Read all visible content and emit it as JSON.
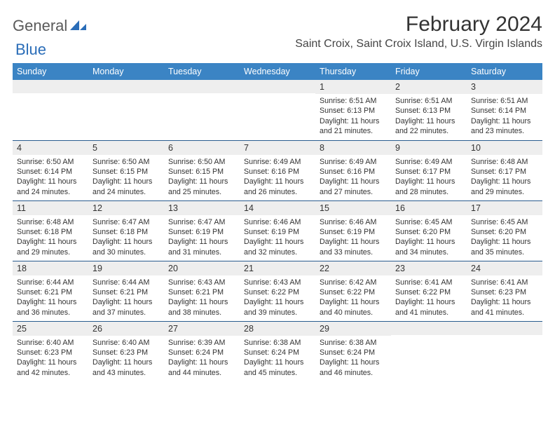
{
  "logo": {
    "general": "General",
    "blue": "Blue"
  },
  "title": "February 2024",
  "location": "Saint Croix, Saint Croix Island, U.S. Virgin Islands",
  "colors": {
    "header_bg": "#3b84c4",
    "header_text": "#ffffff",
    "row_divider": "#2a5c8f",
    "daynum_bg": "#eeeeee",
    "text": "#333333",
    "logo_gray": "#5a5a5a",
    "logo_blue": "#2a6db8"
  },
  "day_headers": [
    "Sunday",
    "Monday",
    "Tuesday",
    "Wednesday",
    "Thursday",
    "Friday",
    "Saturday"
  ],
  "weeks": [
    [
      {
        "num": "",
        "lines": []
      },
      {
        "num": "",
        "lines": []
      },
      {
        "num": "",
        "lines": []
      },
      {
        "num": "",
        "lines": []
      },
      {
        "num": "1",
        "lines": [
          "Sunrise: 6:51 AM",
          "Sunset: 6:13 PM",
          "Daylight: 11 hours",
          "and 21 minutes."
        ]
      },
      {
        "num": "2",
        "lines": [
          "Sunrise: 6:51 AM",
          "Sunset: 6:13 PM",
          "Daylight: 11 hours",
          "and 22 minutes."
        ]
      },
      {
        "num": "3",
        "lines": [
          "Sunrise: 6:51 AM",
          "Sunset: 6:14 PM",
          "Daylight: 11 hours",
          "and 23 minutes."
        ]
      }
    ],
    [
      {
        "num": "4",
        "lines": [
          "Sunrise: 6:50 AM",
          "Sunset: 6:14 PM",
          "Daylight: 11 hours",
          "and 24 minutes."
        ]
      },
      {
        "num": "5",
        "lines": [
          "Sunrise: 6:50 AM",
          "Sunset: 6:15 PM",
          "Daylight: 11 hours",
          "and 24 minutes."
        ]
      },
      {
        "num": "6",
        "lines": [
          "Sunrise: 6:50 AM",
          "Sunset: 6:15 PM",
          "Daylight: 11 hours",
          "and 25 minutes."
        ]
      },
      {
        "num": "7",
        "lines": [
          "Sunrise: 6:49 AM",
          "Sunset: 6:16 PM",
          "Daylight: 11 hours",
          "and 26 minutes."
        ]
      },
      {
        "num": "8",
        "lines": [
          "Sunrise: 6:49 AM",
          "Sunset: 6:16 PM",
          "Daylight: 11 hours",
          "and 27 minutes."
        ]
      },
      {
        "num": "9",
        "lines": [
          "Sunrise: 6:49 AM",
          "Sunset: 6:17 PM",
          "Daylight: 11 hours",
          "and 28 minutes."
        ]
      },
      {
        "num": "10",
        "lines": [
          "Sunrise: 6:48 AM",
          "Sunset: 6:17 PM",
          "Daylight: 11 hours",
          "and 29 minutes."
        ]
      }
    ],
    [
      {
        "num": "11",
        "lines": [
          "Sunrise: 6:48 AM",
          "Sunset: 6:18 PM",
          "Daylight: 11 hours",
          "and 29 minutes."
        ]
      },
      {
        "num": "12",
        "lines": [
          "Sunrise: 6:47 AM",
          "Sunset: 6:18 PM",
          "Daylight: 11 hours",
          "and 30 minutes."
        ]
      },
      {
        "num": "13",
        "lines": [
          "Sunrise: 6:47 AM",
          "Sunset: 6:19 PM",
          "Daylight: 11 hours",
          "and 31 minutes."
        ]
      },
      {
        "num": "14",
        "lines": [
          "Sunrise: 6:46 AM",
          "Sunset: 6:19 PM",
          "Daylight: 11 hours",
          "and 32 minutes."
        ]
      },
      {
        "num": "15",
        "lines": [
          "Sunrise: 6:46 AM",
          "Sunset: 6:19 PM",
          "Daylight: 11 hours",
          "and 33 minutes."
        ]
      },
      {
        "num": "16",
        "lines": [
          "Sunrise: 6:45 AM",
          "Sunset: 6:20 PM",
          "Daylight: 11 hours",
          "and 34 minutes."
        ]
      },
      {
        "num": "17",
        "lines": [
          "Sunrise: 6:45 AM",
          "Sunset: 6:20 PM",
          "Daylight: 11 hours",
          "and 35 minutes."
        ]
      }
    ],
    [
      {
        "num": "18",
        "lines": [
          "Sunrise: 6:44 AM",
          "Sunset: 6:21 PM",
          "Daylight: 11 hours",
          "and 36 minutes."
        ]
      },
      {
        "num": "19",
        "lines": [
          "Sunrise: 6:44 AM",
          "Sunset: 6:21 PM",
          "Daylight: 11 hours",
          "and 37 minutes."
        ]
      },
      {
        "num": "20",
        "lines": [
          "Sunrise: 6:43 AM",
          "Sunset: 6:21 PM",
          "Daylight: 11 hours",
          "and 38 minutes."
        ]
      },
      {
        "num": "21",
        "lines": [
          "Sunrise: 6:43 AM",
          "Sunset: 6:22 PM",
          "Daylight: 11 hours",
          "and 39 minutes."
        ]
      },
      {
        "num": "22",
        "lines": [
          "Sunrise: 6:42 AM",
          "Sunset: 6:22 PM",
          "Daylight: 11 hours",
          "and 40 minutes."
        ]
      },
      {
        "num": "23",
        "lines": [
          "Sunrise: 6:41 AM",
          "Sunset: 6:22 PM",
          "Daylight: 11 hours",
          "and 41 minutes."
        ]
      },
      {
        "num": "24",
        "lines": [
          "Sunrise: 6:41 AM",
          "Sunset: 6:23 PM",
          "Daylight: 11 hours",
          "and 41 minutes."
        ]
      }
    ],
    [
      {
        "num": "25",
        "lines": [
          "Sunrise: 6:40 AM",
          "Sunset: 6:23 PM",
          "Daylight: 11 hours",
          "and 42 minutes."
        ]
      },
      {
        "num": "26",
        "lines": [
          "Sunrise: 6:40 AM",
          "Sunset: 6:23 PM",
          "Daylight: 11 hours",
          "and 43 minutes."
        ]
      },
      {
        "num": "27",
        "lines": [
          "Sunrise: 6:39 AM",
          "Sunset: 6:24 PM",
          "Daylight: 11 hours",
          "and 44 minutes."
        ]
      },
      {
        "num": "28",
        "lines": [
          "Sunrise: 6:38 AM",
          "Sunset: 6:24 PM",
          "Daylight: 11 hours",
          "and 45 minutes."
        ]
      },
      {
        "num": "29",
        "lines": [
          "Sunrise: 6:38 AM",
          "Sunset: 6:24 PM",
          "Daylight: 11 hours",
          "and 46 minutes."
        ]
      },
      {
        "num": "",
        "lines": []
      },
      {
        "num": "",
        "lines": []
      }
    ]
  ]
}
